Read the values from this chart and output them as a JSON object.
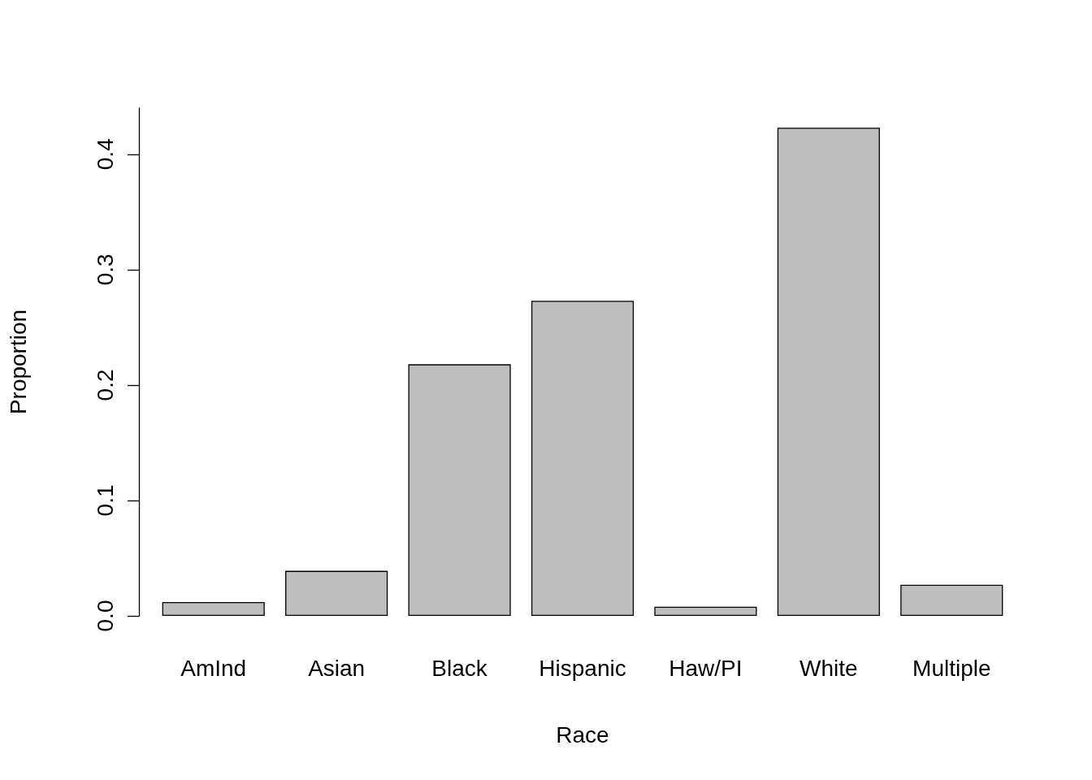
{
  "chart_data": {
    "type": "bar",
    "xlabel": "Race",
    "ylabel": "Proportion",
    "categories": [
      "AmInd",
      "Asian",
      "Black",
      "Hispanic",
      "Haw/PI",
      "White",
      "Multiple"
    ],
    "values": [
      0.012,
      0.039,
      0.218,
      0.273,
      0.008,
      0.423,
      0.027
    ],
    "color": "#bebebe",
    "ylim": [
      0,
      0.44
    ],
    "yticks": [
      {
        "value": 0,
        "label": "0.0"
      },
      0.1,
      0.2,
      0.3,
      0.4
    ],
    "grid": false
  }
}
